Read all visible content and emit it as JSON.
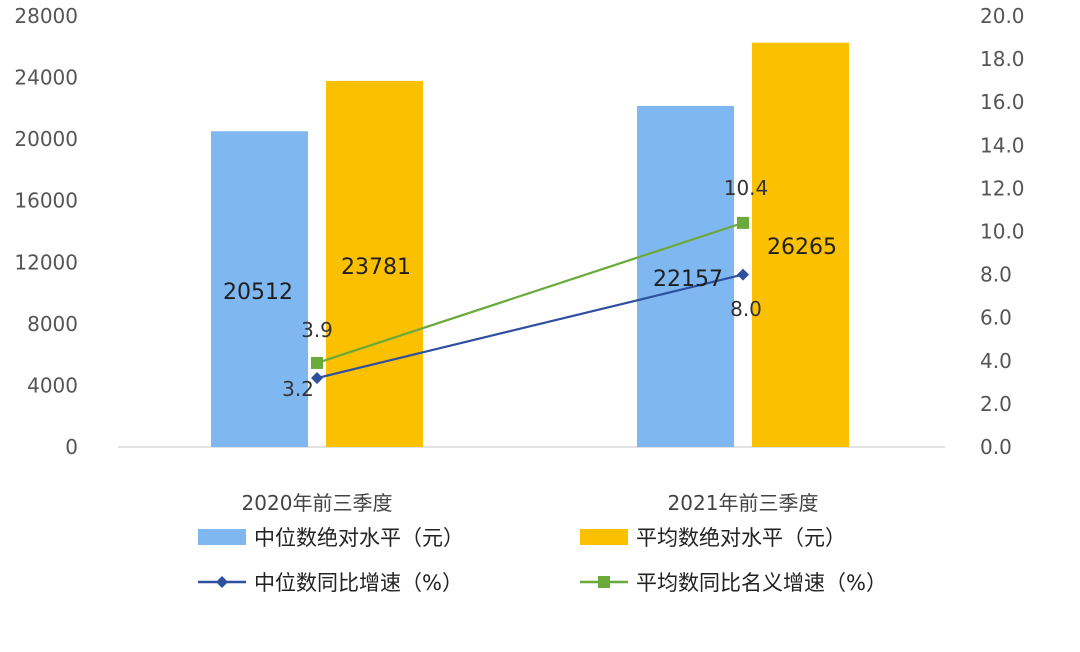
{
  "chart_data": {
    "type": "bar+line",
    "categories": [
      "2020年前三季度",
      "2021年前三季度"
    ],
    "left_axis": {
      "ylim": [
        0,
        28000
      ],
      "ticks": [
        "0",
        "4000",
        "8000",
        "12000",
        "16000",
        "20000",
        "24000",
        "28000"
      ]
    },
    "right_axis": {
      "ylim": [
        0,
        20
      ],
      "ticks": [
        "0.0",
        "2.0",
        "4.0",
        "6.0",
        "8.0",
        "10.0",
        "12.0",
        "14.0",
        "16.0",
        "18.0",
        "20.0"
      ]
    },
    "bar_series": [
      {
        "name": "中位数绝对水平（元）",
        "values": [
          20512,
          22157
        ],
        "labels": [
          "20512",
          "22157"
        ],
        "color": "#7fb8f0"
      },
      {
        "name": "平均数绝对水平（元）",
        "values": [
          23781,
          26265
        ],
        "labels": [
          "23781",
          "26265"
        ],
        "color": "#fbc000"
      }
    ],
    "line_series": [
      {
        "name": "中位数同比增速（%）",
        "values": [
          3.2,
          8.0
        ],
        "labels": [
          "3.2",
          "8.0"
        ],
        "color": "#2f4f9f",
        "marker": "diamond"
      },
      {
        "name": "平均数同比名义增速（%）",
        "values": [
          3.9,
          10.4
        ],
        "labels": [
          "3.9",
          "10.4"
        ],
        "color": "#6aaa3a",
        "marker": "square"
      }
    ],
    "grid": false,
    "legend_position": "bottom"
  }
}
